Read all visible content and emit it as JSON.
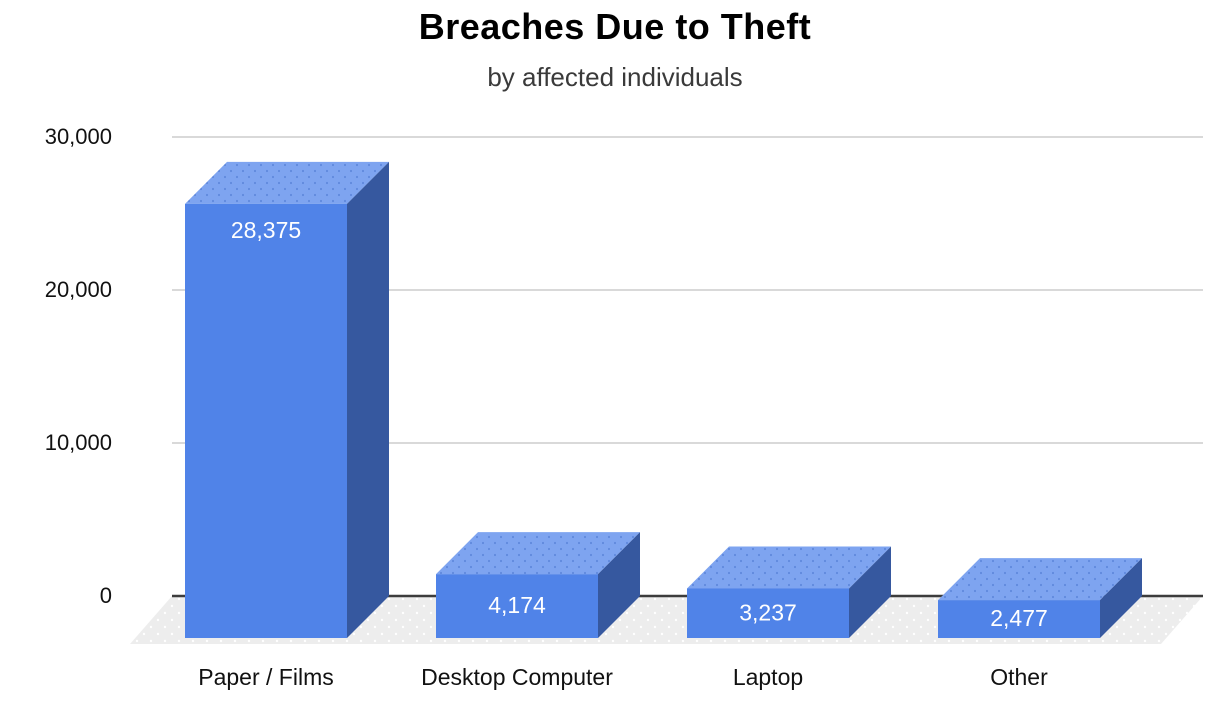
{
  "page": {
    "background": "#ffffff"
  },
  "chart_data": {
    "type": "bar",
    "variant": "3d-column",
    "title": "Breaches Due to Theft",
    "subtitle": "by affected individuals",
    "categories": [
      "Paper / Films",
      "Desktop Computer",
      "Laptop",
      "Other"
    ],
    "values": [
      28375,
      4174,
      3237,
      2477
    ],
    "value_labels": [
      "28,375",
      "4,174",
      "3,237",
      "2,477"
    ],
    "series_name": "Breaches due to theft by affected individuals",
    "xlabel": "",
    "ylabel": "",
    "y_axis": {
      "min": 0,
      "max": 30000,
      "tick_interval": 10000,
      "tick_labels": [
        "0",
        "10,000",
        "20,000",
        "30,000"
      ],
      "grid": true
    },
    "legend_position": "none",
    "colors": {
      "bar_front": "#5083e8",
      "bar_top": "#7ea4f0",
      "bar_top_dot": "#6089dd",
      "bar_side": "#36589f",
      "value_label": "#ffffff",
      "gridline": "#d9d9d9",
      "zero_line": "#3c3c3c",
      "floor": "#ededed",
      "floor_dot": "#ffffff",
      "title": "#000000",
      "subtitle": "#3a3a3a",
      "axis_text": "#111111"
    }
  }
}
